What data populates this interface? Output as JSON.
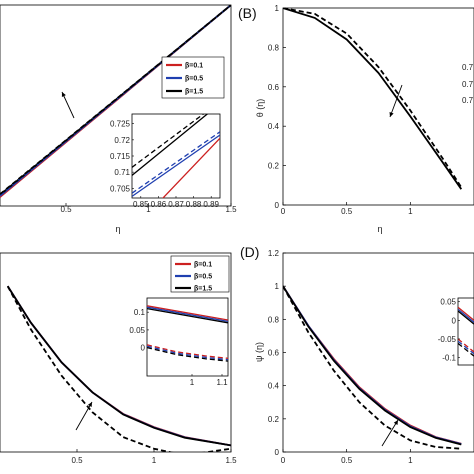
{
  "chart_data": [
    {
      "id": "A",
      "panel_label": "",
      "type": "line",
      "xlabel": "η",
      "ylabel": "",
      "xlim": [
        0.1,
        1.5
      ],
      "xticks": [
        "0.5",
        "1",
        "1.5"
      ],
      "legend_placement": "middle-right",
      "legend": [
        "β=0.1",
        "β=0.5",
        "β=1.5"
      ],
      "annotation": "arrow: increasing β",
      "series": [
        {
          "name": "β=0.1",
          "color": "#cc2020",
          "style": "solid",
          "x": [
            0.1,
            1.5
          ],
          "y": [
            0.14,
            1.0
          ]
        },
        {
          "name": "β=0.5",
          "color": "#1f3fb0",
          "style": "solid",
          "x": [
            0.1,
            1.5
          ],
          "y": [
            0.145,
            1.0
          ]
        },
        {
          "name": "β=1.5",
          "color": "#000000",
          "style": "solid",
          "x": [
            0.1,
            1.5
          ],
          "y": [
            0.15,
            1.0
          ]
        },
        {
          "name": "",
          "color": "#1f3fb0",
          "style": "dashed",
          "x": [
            0.1,
            1.5
          ],
          "y": [
            0.148,
            1.0
          ]
        },
        {
          "name": "",
          "color": "#000000",
          "style": "dashed",
          "x": [
            0.1,
            1.5
          ],
          "y": [
            0.153,
            1.0
          ]
        }
      ],
      "inset": {
        "xlim": [
          0.845,
          0.895
        ],
        "ylim": [
          0.702,
          0.728
        ],
        "xticks": [
          "0.85",
          "0.86",
          "0.87",
          "0.88",
          "0.89"
        ],
        "yticks": [
          "0.705",
          "0.71",
          "0.715",
          "0.72",
          "0.725"
        ],
        "series": [
          {
            "color": "#cc2020",
            "style": "solid",
            "x": [
              0.86,
              0.895
            ],
            "y": [
              0.7005,
              0.7205
            ]
          },
          {
            "color": "#1f3fb0",
            "style": "solid",
            "x": [
              0.845,
              0.895
            ],
            "y": [
              0.7025,
              0.7215
            ]
          },
          {
            "color": "#1f3fb0",
            "style": "dashed",
            "x": [
              0.845,
              0.895
            ],
            "y": [
              0.7035,
              0.7225
            ]
          },
          {
            "color": "#000000",
            "style": "solid",
            "x": [
              0.845,
              0.89
            ],
            "y": [
              0.709,
              0.729
            ]
          },
          {
            "color": "#000000",
            "style": "dashed",
            "x": [
              0.845,
              0.888
            ],
            "y": [
              0.7115,
              0.729
            ]
          }
        ]
      }
    },
    {
      "id": "B",
      "panel_label": "(B)",
      "type": "line",
      "xlabel": "η",
      "ylabel": "θ (η)",
      "xlim": [
        0,
        1.5
      ],
      "ylim": [
        0,
        1
      ],
      "xticks": [
        "0",
        "0.5",
        "1"
      ],
      "yticks": [
        "0",
        "0.2",
        "0.4",
        "0.6",
        "0.8",
        "1"
      ],
      "partial_labels": [
        "0.7",
        "0.7",
        "0.7"
      ],
      "annotation": "arrow: increasing β",
      "series": [
        {
          "name": "",
          "color": "#000000",
          "style": "solid",
          "x": [
            0,
            0.25,
            0.5,
            0.75,
            1.0,
            1.25,
            1.4
          ],
          "y": [
            1.0,
            0.95,
            0.84,
            0.67,
            0.45,
            0.22,
            0.08
          ]
        },
        {
          "name": "",
          "color": "#000000",
          "style": "dashed",
          "x": [
            0,
            0.25,
            0.5,
            0.75,
            1.0,
            1.25,
            1.4
          ],
          "y": [
            1.0,
            0.97,
            0.87,
            0.7,
            0.48,
            0.24,
            0.09
          ]
        }
      ]
    },
    {
      "id": "C",
      "panel_label": "",
      "type": "line",
      "xlabel": "",
      "ylabel": "",
      "xlim": [
        0,
        1.5
      ],
      "ylim": [
        0,
        0.6
      ],
      "xticks": [
        "0.5",
        "1",
        "1.5"
      ],
      "legend_placement": "top-right",
      "legend": [
        "β=0.1",
        "β=0.5",
        "β=1.5"
      ],
      "annotation": "arrow: increasing β",
      "series": [
        {
          "name": "β=0.1",
          "color": "#cc2020",
          "style": "solid",
          "x": [
            0.05,
            0.2,
            0.4,
            0.6,
            0.8,
            1.0,
            1.2,
            1.5
          ],
          "y": [
            0.5,
            0.39,
            0.27,
            0.18,
            0.115,
            0.075,
            0.045,
            0.02
          ]
        },
        {
          "name": "β=0.5",
          "color": "#1f3fb0",
          "style": "solid",
          "x": [
            0.05,
            0.2,
            0.4,
            0.6,
            0.8,
            1.0,
            1.2,
            1.5
          ],
          "y": [
            0.5,
            0.39,
            0.27,
            0.18,
            0.114,
            0.074,
            0.044,
            0.02
          ]
        },
        {
          "name": "β=1.5",
          "color": "#000000",
          "style": "solid",
          "x": [
            0.05,
            0.2,
            0.4,
            0.6,
            0.8,
            1.0,
            1.2,
            1.5
          ],
          "y": [
            0.5,
            0.39,
            0.27,
            0.18,
            0.113,
            0.073,
            0.043,
            0.02
          ]
        },
        {
          "name": "",
          "color": "#000000",
          "style": "dashed",
          "x": [
            0.05,
            0.2,
            0.4,
            0.6,
            0.8,
            1.0,
            1.2,
            1.5
          ],
          "y": [
            0.5,
            0.37,
            0.23,
            0.12,
            0.045,
            0.01,
            -0.01,
            0.01
          ]
        }
      ],
      "inset": {
        "xlim": [
          0.85,
          1.12
        ],
        "ylim": [
          -0.08,
          0.14
        ],
        "xticks": [
          "1",
          "1.1"
        ],
        "yticks": [
          "0",
          "0.05",
          "0.1"
        ],
        "series": [
          {
            "color": "#cc2020",
            "style": "solid",
            "x": [
              0.85,
              1.12
            ],
            "y": [
              0.118,
              0.078
            ]
          },
          {
            "color": "#1f3fb0",
            "style": "solid",
            "x": [
              0.85,
              1.12
            ],
            "y": [
              0.114,
              0.074
            ]
          },
          {
            "color": "#000000",
            "style": "solid",
            "x": [
              0.85,
              1.12
            ],
            "y": [
              0.11,
              0.07
            ]
          },
          {
            "color": "#cc2020",
            "style": "dashed",
            "x": [
              0.85,
              0.95,
              1.05,
              1.12
            ],
            "y": [
              0.008,
              -0.012,
              -0.024,
              -0.03
            ]
          },
          {
            "color": "#1f3fb0",
            "style": "dashed",
            "x": [
              0.85,
              0.95,
              1.05,
              1.12
            ],
            "y": [
              0.004,
              -0.016,
              -0.028,
              -0.034
            ]
          },
          {
            "color": "#000000",
            "style": "dashed",
            "x": [
              0.85,
              0.95,
              1.05,
              1.12
            ],
            "y": [
              0.0,
              -0.02,
              -0.032,
              -0.038
            ]
          }
        ]
      }
    },
    {
      "id": "D",
      "panel_label": "(D)",
      "type": "line",
      "xlabel": "",
      "ylabel": "ψ (η)",
      "xlim": [
        0,
        1.5
      ],
      "ylim": [
        0,
        1.2
      ],
      "xticks": [
        "0",
        "0.5",
        "1"
      ],
      "yticks": [
        "0",
        "0.2",
        "0.4",
        "0.6",
        "0.8",
        "1",
        "1.2"
      ],
      "annotation": "arrow: increasing β",
      "series": [
        {
          "name": "",
          "color": "#cc2020",
          "style": "solid",
          "x": [
            0,
            0.2,
            0.4,
            0.6,
            0.8,
            1.0,
            1.2,
            1.4
          ],
          "y": [
            1.0,
            0.76,
            0.56,
            0.39,
            0.26,
            0.16,
            0.09,
            0.05
          ]
        },
        {
          "name": "",
          "color": "#1f3fb0",
          "style": "solid",
          "x": [
            0,
            0.2,
            0.4,
            0.6,
            0.8,
            1.0,
            1.2,
            1.4
          ],
          "y": [
            1.0,
            0.76,
            0.555,
            0.385,
            0.255,
            0.155,
            0.088,
            0.048
          ]
        },
        {
          "name": "",
          "color": "#000000",
          "style": "solid",
          "x": [
            0,
            0.2,
            0.4,
            0.6,
            0.8,
            1.0,
            1.2,
            1.4
          ],
          "y": [
            1.0,
            0.755,
            0.55,
            0.38,
            0.25,
            0.15,
            0.085,
            0.045
          ]
        },
        {
          "name": "",
          "color": "#000000",
          "style": "dashed",
          "x": [
            0,
            0.2,
            0.4,
            0.6,
            0.8,
            1.0,
            1.2,
            1.4
          ],
          "y": [
            1.0,
            0.72,
            0.49,
            0.3,
            0.16,
            0.07,
            0.03,
            0.02
          ]
        }
      ],
      "inset": {
        "xlim": [
          0.85,
          1.1
        ],
        "ylim": [
          -0.12,
          0.06
        ],
        "xticks": [],
        "yticks": [
          "-0.1",
          "-0.05",
          "0",
          "0.05"
        ],
        "series": [
          {
            "color": "#cc2020",
            "style": "solid",
            "x": [
              0.85,
              1.1
            ],
            "y": [
              0.035,
              0.0
            ]
          },
          {
            "color": "#1f3fb0",
            "style": "solid",
            "x": [
              0.85,
              1.1
            ],
            "y": [
              0.03,
              -0.005
            ]
          },
          {
            "color": "#000000",
            "style": "solid",
            "x": [
              0.85,
              1.1
            ],
            "y": [
              0.025,
              -0.01
            ]
          },
          {
            "color": "#cc2020",
            "style": "dashed",
            "x": [
              0.85,
              1.1
            ],
            "y": [
              -0.05,
              -0.085
            ]
          },
          {
            "color": "#1f3fb0",
            "style": "dashed",
            "x": [
              0.85,
              1.1
            ],
            "y": [
              -0.056,
              -0.09
            ]
          },
          {
            "color": "#000000",
            "style": "dashed",
            "x": [
              0.85,
              1.1
            ],
            "y": [
              -0.062,
              -0.096
            ]
          }
        ]
      }
    }
  ]
}
